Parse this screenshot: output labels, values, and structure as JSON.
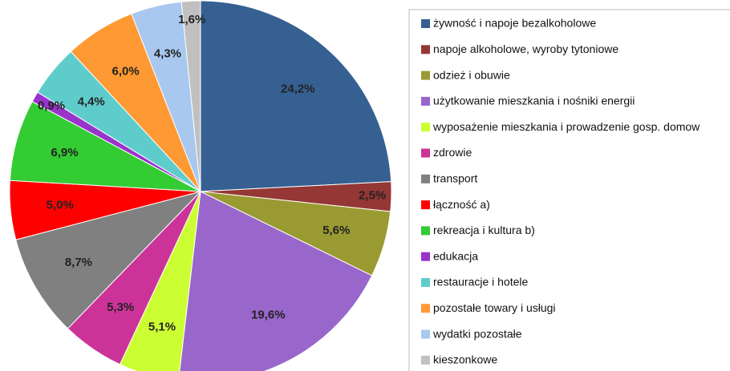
{
  "chart_data": {
    "type": "pie",
    "categories": [
      "żywność i napoje bezalkoholowe",
      "napoje alkoholowe, wyroby tytoniowe",
      "odzież i obuwie",
      "użytkowanie mieszkania i nośniki energii",
      "wyposażenie mieszkania i prowadzenie gosp. domow",
      "zdrowie",
      "transport",
      "łączność a)",
      "rekreacja i kultura b)",
      "edukacja",
      "restauracje i hotele",
      "pozostałe towary i usługi",
      "wydatki pozostałe",
      "kieszonkowe"
    ],
    "values": [
      24.2,
      2.5,
      5.6,
      19.6,
      5.1,
      5.3,
      8.7,
      5.0,
      6.9,
      0.9,
      4.4,
      6.0,
      4.3,
      1.6
    ],
    "value_labels": [
      "24,2%",
      "2,5%",
      "5,6%",
      "19,6%",
      "5,1%",
      "5,3%",
      "8,7%",
      "5,0%",
      "6,9%",
      "0,9%",
      "4,4%",
      "6,0%",
      "4,3%",
      "1,6%"
    ],
    "colors": [
      "#366092",
      "#953735",
      "#9a9a32",
      "#9966cc",
      "#ccff33",
      "#cc3399",
      "#808080",
      "#ff0000",
      "#33cc33",
      "#9933cc",
      "#5fcccc",
      "#ff9933",
      "#a8c8f0",
      "#c0c0c0"
    ],
    "legend": "right"
  }
}
